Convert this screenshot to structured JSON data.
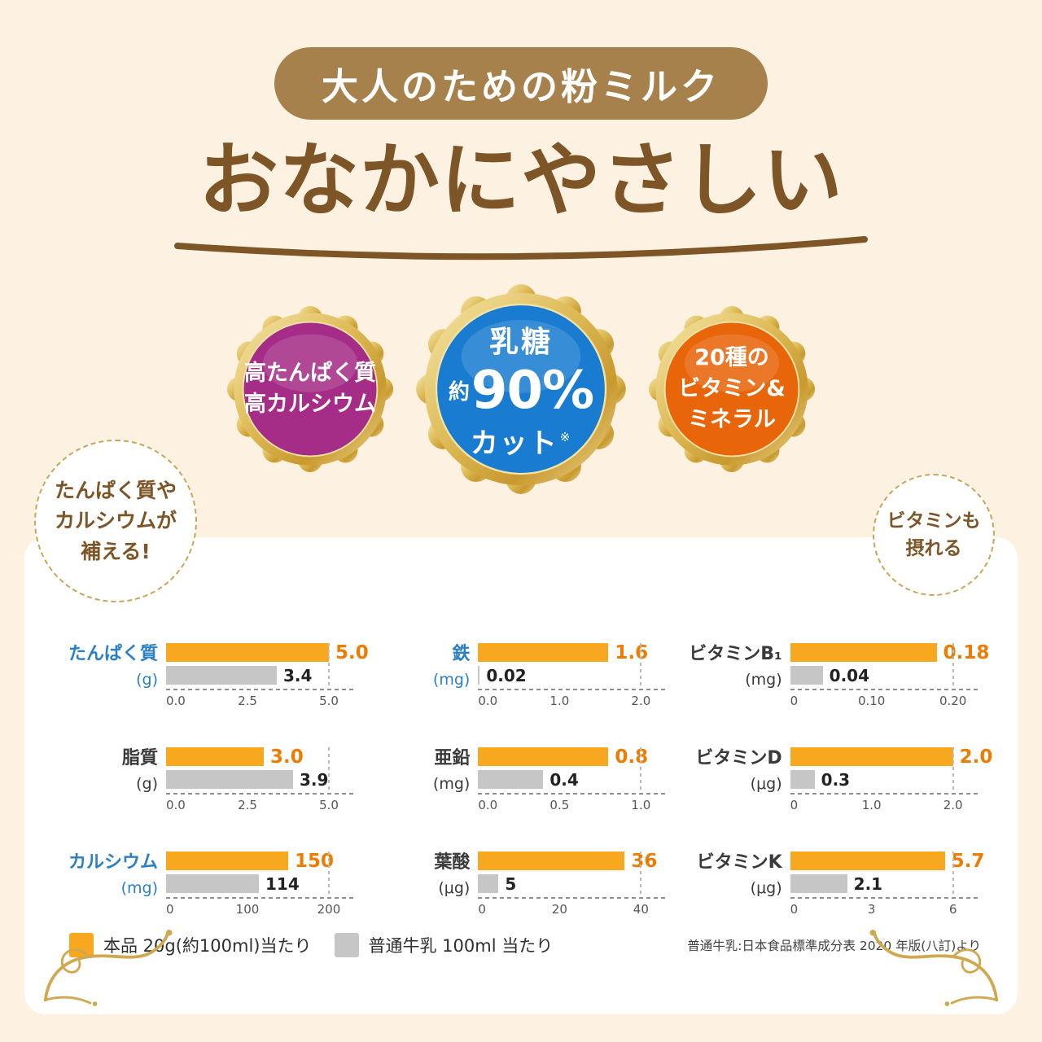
{
  "header": {
    "banner": "大人のための粉ミルク",
    "headline": "おなかにやさしい"
  },
  "badges": {
    "protein": {
      "color": "#a62d87",
      "lines": [
        "高たんぱく質",
        "高カルシウム"
      ]
    },
    "lactose": {
      "color": "#1a7cd0",
      "top": "乳糖",
      "approx": "約",
      "percent": "90%",
      "bottom": "カット",
      "note": "※"
    },
    "vitamin": {
      "color": "#e8650a",
      "lines": [
        "20種の",
        "ビタミン&",
        "ミネラル"
      ]
    }
  },
  "callouts": {
    "left": {
      "lines": [
        "たんぱく質や",
        "カルシウムが",
        "補える!"
      ]
    },
    "right": {
      "lines": [
        "ビタミンも",
        "摂れる"
      ]
    }
  },
  "chart_data": {
    "type": "bar",
    "orientation": "horizontal",
    "grid_layout": "3x3",
    "series": [
      {
        "name": "本品 20g(約100ml)当たり",
        "color": "#f7a81f"
      },
      {
        "name": "普通牛乳 100ml 当たり",
        "color": "#c6c6c6"
      }
    ],
    "charts": [
      {
        "key": "protein",
        "name": "たんぱく質",
        "unit": "(g)",
        "accent": true,
        "product": 5.0,
        "product_label": "5.0",
        "milk": 3.4,
        "milk_label": "3.4",
        "xmax": 5,
        "ticks": [
          "0.0",
          "2.5",
          "5.0"
        ]
      },
      {
        "key": "iron",
        "name": "鉄",
        "unit": "(mg)",
        "accent": true,
        "product": 1.6,
        "product_label": "1.6",
        "milk": 0.02,
        "milk_label": "0.02",
        "xmax": 2,
        "ticks": [
          "0.0",
          "1.0",
          "2.0"
        ]
      },
      {
        "key": "vitamin-b1",
        "name": "ビタミンB₁",
        "unit": "(mg)",
        "accent": false,
        "product": 0.18,
        "product_label": "0.18",
        "milk": 0.04,
        "milk_label": "0.04",
        "xmax": 0.2,
        "ticks": [
          "0",
          "0.10",
          "0.20"
        ]
      },
      {
        "key": "fat",
        "name": "脂質",
        "unit": "(g)",
        "accent": false,
        "product": 3.0,
        "product_label": "3.0",
        "milk": 3.9,
        "milk_label": "3.9",
        "xmax": 5,
        "ticks": [
          "0.0",
          "2.5",
          "5.0"
        ]
      },
      {
        "key": "zinc",
        "name": "亜鉛",
        "unit": "(mg)",
        "accent": false,
        "product": 0.8,
        "product_label": "0.8",
        "milk": 0.4,
        "milk_label": "0.4",
        "xmax": 1,
        "ticks": [
          "0.0",
          "0.5",
          "1.0"
        ]
      },
      {
        "key": "vitamin-d",
        "name": "ビタミンD",
        "unit": "(μg)",
        "accent": false,
        "product": 2.0,
        "product_label": "2.0",
        "milk": 0.3,
        "milk_label": "0.3",
        "xmax": 2,
        "ticks": [
          "0",
          "1.0",
          "2.0"
        ]
      },
      {
        "key": "calcium",
        "name": "カルシウム",
        "unit": "(mg)",
        "accent": true,
        "product": 150,
        "product_label": "150",
        "milk": 114,
        "milk_label": "114",
        "xmax": 200,
        "ticks": [
          "0",
          "100",
          "200"
        ]
      },
      {
        "key": "folate",
        "name": "葉酸",
        "unit": "(μg)",
        "accent": false,
        "product": 36,
        "product_label": "36",
        "milk": 5,
        "milk_label": "5",
        "xmax": 40,
        "ticks": [
          "0",
          "20",
          "40"
        ]
      },
      {
        "key": "vitamin-k",
        "name": "ビタミンK",
        "unit": "(μg)",
        "accent": false,
        "product": 5.7,
        "product_label": "5.7",
        "milk": 2.1,
        "milk_label": "2.1",
        "xmax": 6,
        "ticks": [
          "0",
          "3",
          "6"
        ]
      }
    ]
  },
  "legend": {
    "product": "本品 20g(約100ml)当たり",
    "milk": "普通牛乳 100ml 当たり",
    "footnote": "普通牛乳:日本食品標準成分表 2020 年版(八訂)より"
  },
  "colors": {
    "background": "#fdf2e2",
    "banner_brown": "#a7814c",
    "headline_brown": "#7d5527",
    "gold": "#c9a557",
    "accent_blue": "#2b7fc5",
    "value_orange": "#ee7c00",
    "text_dark": "#3a3a3a"
  }
}
